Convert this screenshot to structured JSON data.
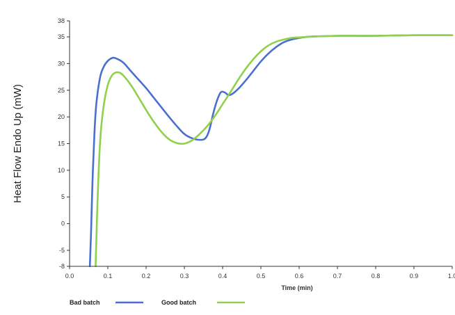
{
  "chart_data": {
    "type": "line",
    "title": "",
    "xlabel": "Time (min)",
    "ylabel": "Heat Flow Endo Up (mW)",
    "xlim": [
      0.0,
      1.0
    ],
    "ylim": [
      -8,
      38
    ],
    "xticks": [
      "0.0",
      "0.1",
      "0.2",
      "0.3",
      "0.4",
      "0.5",
      "0.6",
      "0.7",
      "0.8",
      "0.9",
      "1.0"
    ],
    "yticks": [
      "-8",
      "-5",
      "0",
      "5",
      "10",
      "15",
      "20",
      "25",
      "30",
      "35",
      "38"
    ],
    "grid": false,
    "legend_position": "bottom-left",
    "series": [
      {
        "name": "Bad batch",
        "color": "#4a6fd0",
        "x": [
          0.053,
          0.056,
          0.06,
          0.065,
          0.07,
          0.08,
          0.09,
          0.1,
          0.11,
          0.12,
          0.14,
          0.16,
          0.18,
          0.2,
          0.22,
          0.24,
          0.26,
          0.28,
          0.3,
          0.32,
          0.34,
          0.355,
          0.365,
          0.375,
          0.385,
          0.395,
          0.405,
          0.415,
          0.425,
          0.44,
          0.46,
          0.48,
          0.5,
          0.52,
          0.54,
          0.56,
          0.58,
          0.6,
          0.62,
          0.65,
          0.7,
          0.75,
          0.8,
          0.9,
          1.0
        ],
        "values": [
          -8,
          -2,
          8,
          17,
          22.5,
          27.5,
          29.5,
          30.5,
          31,
          31,
          30.2,
          28.6,
          27,
          25.4,
          23.6,
          21.8,
          20,
          18.3,
          16.8,
          16,
          15.7,
          16,
          17.5,
          20.5,
          23,
          24.6,
          24.6,
          24.1,
          24.3,
          25.2,
          26.8,
          28.6,
          30.4,
          31.9,
          33.1,
          34,
          34.5,
          34.8,
          35,
          35.1,
          35.2,
          35.2,
          35.2,
          35.3,
          35.3
        ]
      },
      {
        "name": "Good batch",
        "color": "#8fd14a",
        "x": [
          0.068,
          0.07,
          0.073,
          0.077,
          0.082,
          0.09,
          0.1,
          0.11,
          0.12,
          0.13,
          0.14,
          0.16,
          0.18,
          0.2,
          0.22,
          0.24,
          0.26,
          0.28,
          0.3,
          0.32,
          0.34,
          0.36,
          0.38,
          0.4,
          0.42,
          0.44,
          0.46,
          0.48,
          0.5,
          0.52,
          0.54,
          0.56,
          0.58,
          0.6,
          0.62,
          0.65,
          0.7,
          0.75,
          0.8,
          0.9,
          1.0
        ],
        "values": [
          -8,
          -3,
          4,
          11.5,
          17.5,
          22.5,
          26,
          27.7,
          28.3,
          28.3,
          27.8,
          26,
          23.7,
          21.3,
          19.1,
          17.2,
          15.8,
          15.1,
          15,
          15.6,
          16.8,
          18.3,
          20.2,
          22.4,
          24.6,
          26.9,
          29,
          30.8,
          32.3,
          33.4,
          34.1,
          34.5,
          34.8,
          34.9,
          35,
          35.1,
          35.2,
          35.2,
          35.2,
          35.3,
          35.3
        ]
      }
    ]
  }
}
